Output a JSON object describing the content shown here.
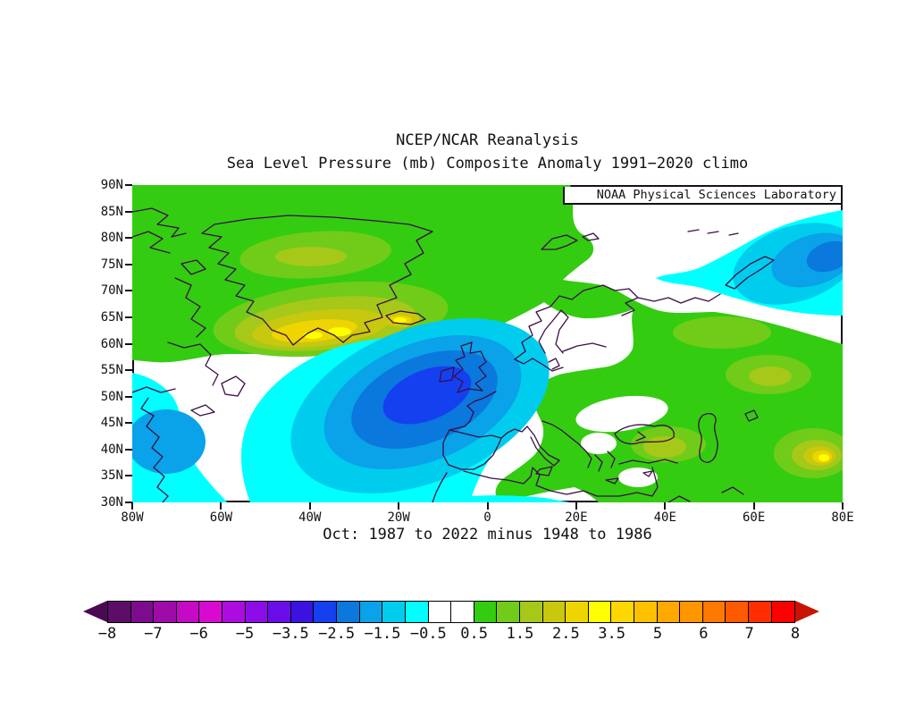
{
  "page": {
    "background": "#ffffff"
  },
  "header": {
    "title": "NCEP/NCAR Reanalysis",
    "subtitle": "Sea Level Pressure (mb) Composite Anomaly 1991−2020 climo"
  },
  "map": {
    "credit": "NOAA Physical Sciences Laboratory",
    "caption": "Oct: 1987 to 2022 minus 1948 to 1986",
    "frame_color": "#1a0b1f",
    "coastline_color": "#3c0d45",
    "y_tick_labels": [
      "90N",
      "85N",
      "80N",
      "75N",
      "70N",
      "65N",
      "60N",
      "55N",
      "50N",
      "45N",
      "40N",
      "35N",
      "30N"
    ],
    "x_tick_labels": [
      "80W",
      "60W",
      "40W",
      "20W",
      "0",
      "20E",
      "40E",
      "60E",
      "80E"
    ]
  },
  "colorbar": {
    "labels": [
      "−8",
      "−7",
      "−6",
      "−5",
      "−3.5",
      "−2.5",
      "−1.5",
      "−0.5",
      "0.5",
      "1.5",
      "2.5",
      "3.5",
      "5",
      "6",
      "7",
      "8"
    ],
    "cell_colors": [
      "#5c0d66",
      "#7d0c8c",
      "#9e0ba8",
      "#c40ac4",
      "#d80ad2",
      "#ac0ce0",
      "#8c0ce8",
      "#6a0ce8",
      "#3c12e0",
      "#1540f0",
      "#0a78dd",
      "#0aa2e8",
      "#00cdee",
      "#00ffff",
      "#ffffff",
      "#ffffff",
      "#33cc11",
      "#70cc18",
      "#a6c818",
      "#c8c80e",
      "#eed400",
      "#ffff00",
      "#ffd700",
      "#ffc000",
      "#ffa800",
      "#ff9600",
      "#ff7800",
      "#ff5a00",
      "#ff2d00",
      "#ff0000"
    ],
    "left_arrow_color": "#4a0a52",
    "right_arrow_color": "#c81400"
  },
  "chart_data": {
    "type": "heatmap",
    "subtype": "filled_contour_geographic_map",
    "title": "NCEP/NCAR Reanalysis",
    "subtitle": "Sea Level Pressure (mb) Composite Anomaly 1991−2020 climo",
    "caption": "Oct: 1987 to 2022 minus 1948 to 1986",
    "source_label": "NOAA Physical Sciences Laboratory",
    "variable": "Sea Level Pressure",
    "units": "mb",
    "composite": "October mean 1987-2022 minus October mean 1948-1986",
    "climatology": "1991-2020",
    "lon_range": [
      -80,
      80
    ],
    "lat_range": [
      30,
      90
    ],
    "x_tick_labels": [
      "80W",
      "60W",
      "40W",
      "20W",
      "0",
      "20E",
      "40E",
      "60E",
      "80E"
    ],
    "y_tick_labels": [
      "90N",
      "85N",
      "80N",
      "75N",
      "70N",
      "65N",
      "60N",
      "55N",
      "50N",
      "45N",
      "40N",
      "35N",
      "30N"
    ],
    "contour_levels": [
      -8,
      -7,
      -6,
      -5,
      -3.5,
      -2.5,
      -1.5,
      -0.5,
      0.5,
      1.5,
      2.5,
      3.5,
      5,
      6,
      7,
      8
    ],
    "legend_position": "bottom",
    "grid": false,
    "anomaly_features": [
      {
        "feature": "negative center",
        "approx_lon": -15,
        "approx_lat": 48,
        "min_value_mb": -3,
        "extent": "North Atlantic west of Britain/Ireland; covers British Isles, Biscay, Iberia, western Mediterranean"
      },
      {
        "feature": "negative area",
        "approx_lon": -73,
        "approx_lat": 41,
        "min_value_mb": -1.5,
        "extent": "U.S. east coast / northwest Atlantic at left edge"
      },
      {
        "feature": "negative center",
        "approx_lon": 75,
        "approx_lat": 77,
        "min_value_mb": -2.5,
        "extent": "Barents/Kara Seas, Arctic Russia, top-right corner"
      },
      {
        "feature": "positive band",
        "approx_lon": -40,
        "approx_lat": 61,
        "max_value_mb": 3.5,
        "extent": "yellow ridge across southern Greenland to Iceland"
      },
      {
        "feature": "positive area",
        "approx_lon": 40,
        "approx_lat": 55,
        "max_value_mb": 2.5,
        "extent": "broad green anomaly over Europe, western Russia and Greenland/Arctic"
      },
      {
        "feature": "positive center",
        "approx_lon": 76,
        "approx_lat": 38,
        "max_value_mb": 4,
        "extent": "yellow spot near right map edge over Central Asia"
      }
    ]
  }
}
